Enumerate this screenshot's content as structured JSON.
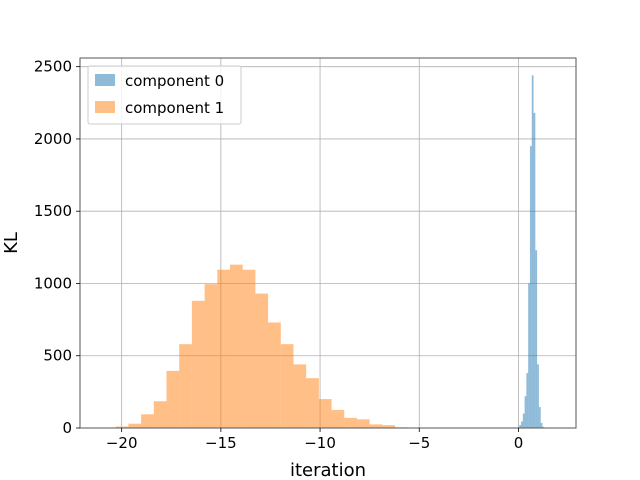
{
  "chart_data": {
    "type": "bar",
    "title": "",
    "xlabel": "iteration",
    "ylabel": "KL",
    "xlim": [
      -22.1,
      2.9
    ],
    "ylim": [
      0,
      2560
    ],
    "xticks": [
      -20,
      -15,
      -10,
      -5,
      0
    ],
    "yticks": [
      0,
      500,
      1000,
      1500,
      2000,
      2500
    ],
    "grid": true,
    "legend": "top-left",
    "series": [
      {
        "name": "component 0",
        "color": "#1f77b4",
        "opacity": 0.5,
        "bin_width": 0.09,
        "bins": [
          {
            "x0": -0.05,
            "count": 5
          },
          {
            "x0": 0.04,
            "count": 20
          },
          {
            "x0": 0.13,
            "count": 45
          },
          {
            "x0": 0.22,
            "count": 100
          },
          {
            "x0": 0.31,
            "count": 220
          },
          {
            "x0": 0.4,
            "count": 380
          },
          {
            "x0": 0.49,
            "count": 1000
          },
          {
            "x0": 0.58,
            "count": 1950
          },
          {
            "x0": 0.67,
            "count": 2440
          },
          {
            "x0": 0.76,
            "count": 2180
          },
          {
            "x0": 0.85,
            "count": 1230
          },
          {
            "x0": 0.94,
            "count": 440
          },
          {
            "x0": 1.03,
            "count": 145
          },
          {
            "x0": 1.12,
            "count": 35
          },
          {
            "x0": 1.21,
            "count": 8
          }
        ]
      },
      {
        "name": "component 1",
        "color": "#ff7f0e",
        "opacity": 0.5,
        "bin_width": 0.64,
        "bins": [
          {
            "x0": -20.3,
            "count": 10
          },
          {
            "x0": -19.66,
            "count": 30
          },
          {
            "x0": -19.02,
            "count": 95
          },
          {
            "x0": -18.38,
            "count": 185
          },
          {
            "x0": -17.74,
            "count": 395
          },
          {
            "x0": -17.1,
            "count": 580
          },
          {
            "x0": -16.46,
            "count": 880
          },
          {
            "x0": -15.82,
            "count": 995
          },
          {
            "x0": -15.18,
            "count": 1095
          },
          {
            "x0": -14.54,
            "count": 1130
          },
          {
            "x0": -13.9,
            "count": 1095
          },
          {
            "x0": -13.26,
            "count": 930
          },
          {
            "x0": -12.62,
            "count": 730
          },
          {
            "x0": -11.98,
            "count": 580
          },
          {
            "x0": -11.34,
            "count": 440
          },
          {
            "x0": -10.7,
            "count": 345
          },
          {
            "x0": -10.06,
            "count": 200
          },
          {
            "x0": -9.42,
            "count": 125
          },
          {
            "x0": -8.78,
            "count": 70
          },
          {
            "x0": -8.14,
            "count": 60
          },
          {
            "x0": -7.5,
            "count": 25
          },
          {
            "x0": -6.86,
            "count": 20
          },
          {
            "x0": -6.22,
            "count": 5
          }
        ]
      }
    ]
  }
}
